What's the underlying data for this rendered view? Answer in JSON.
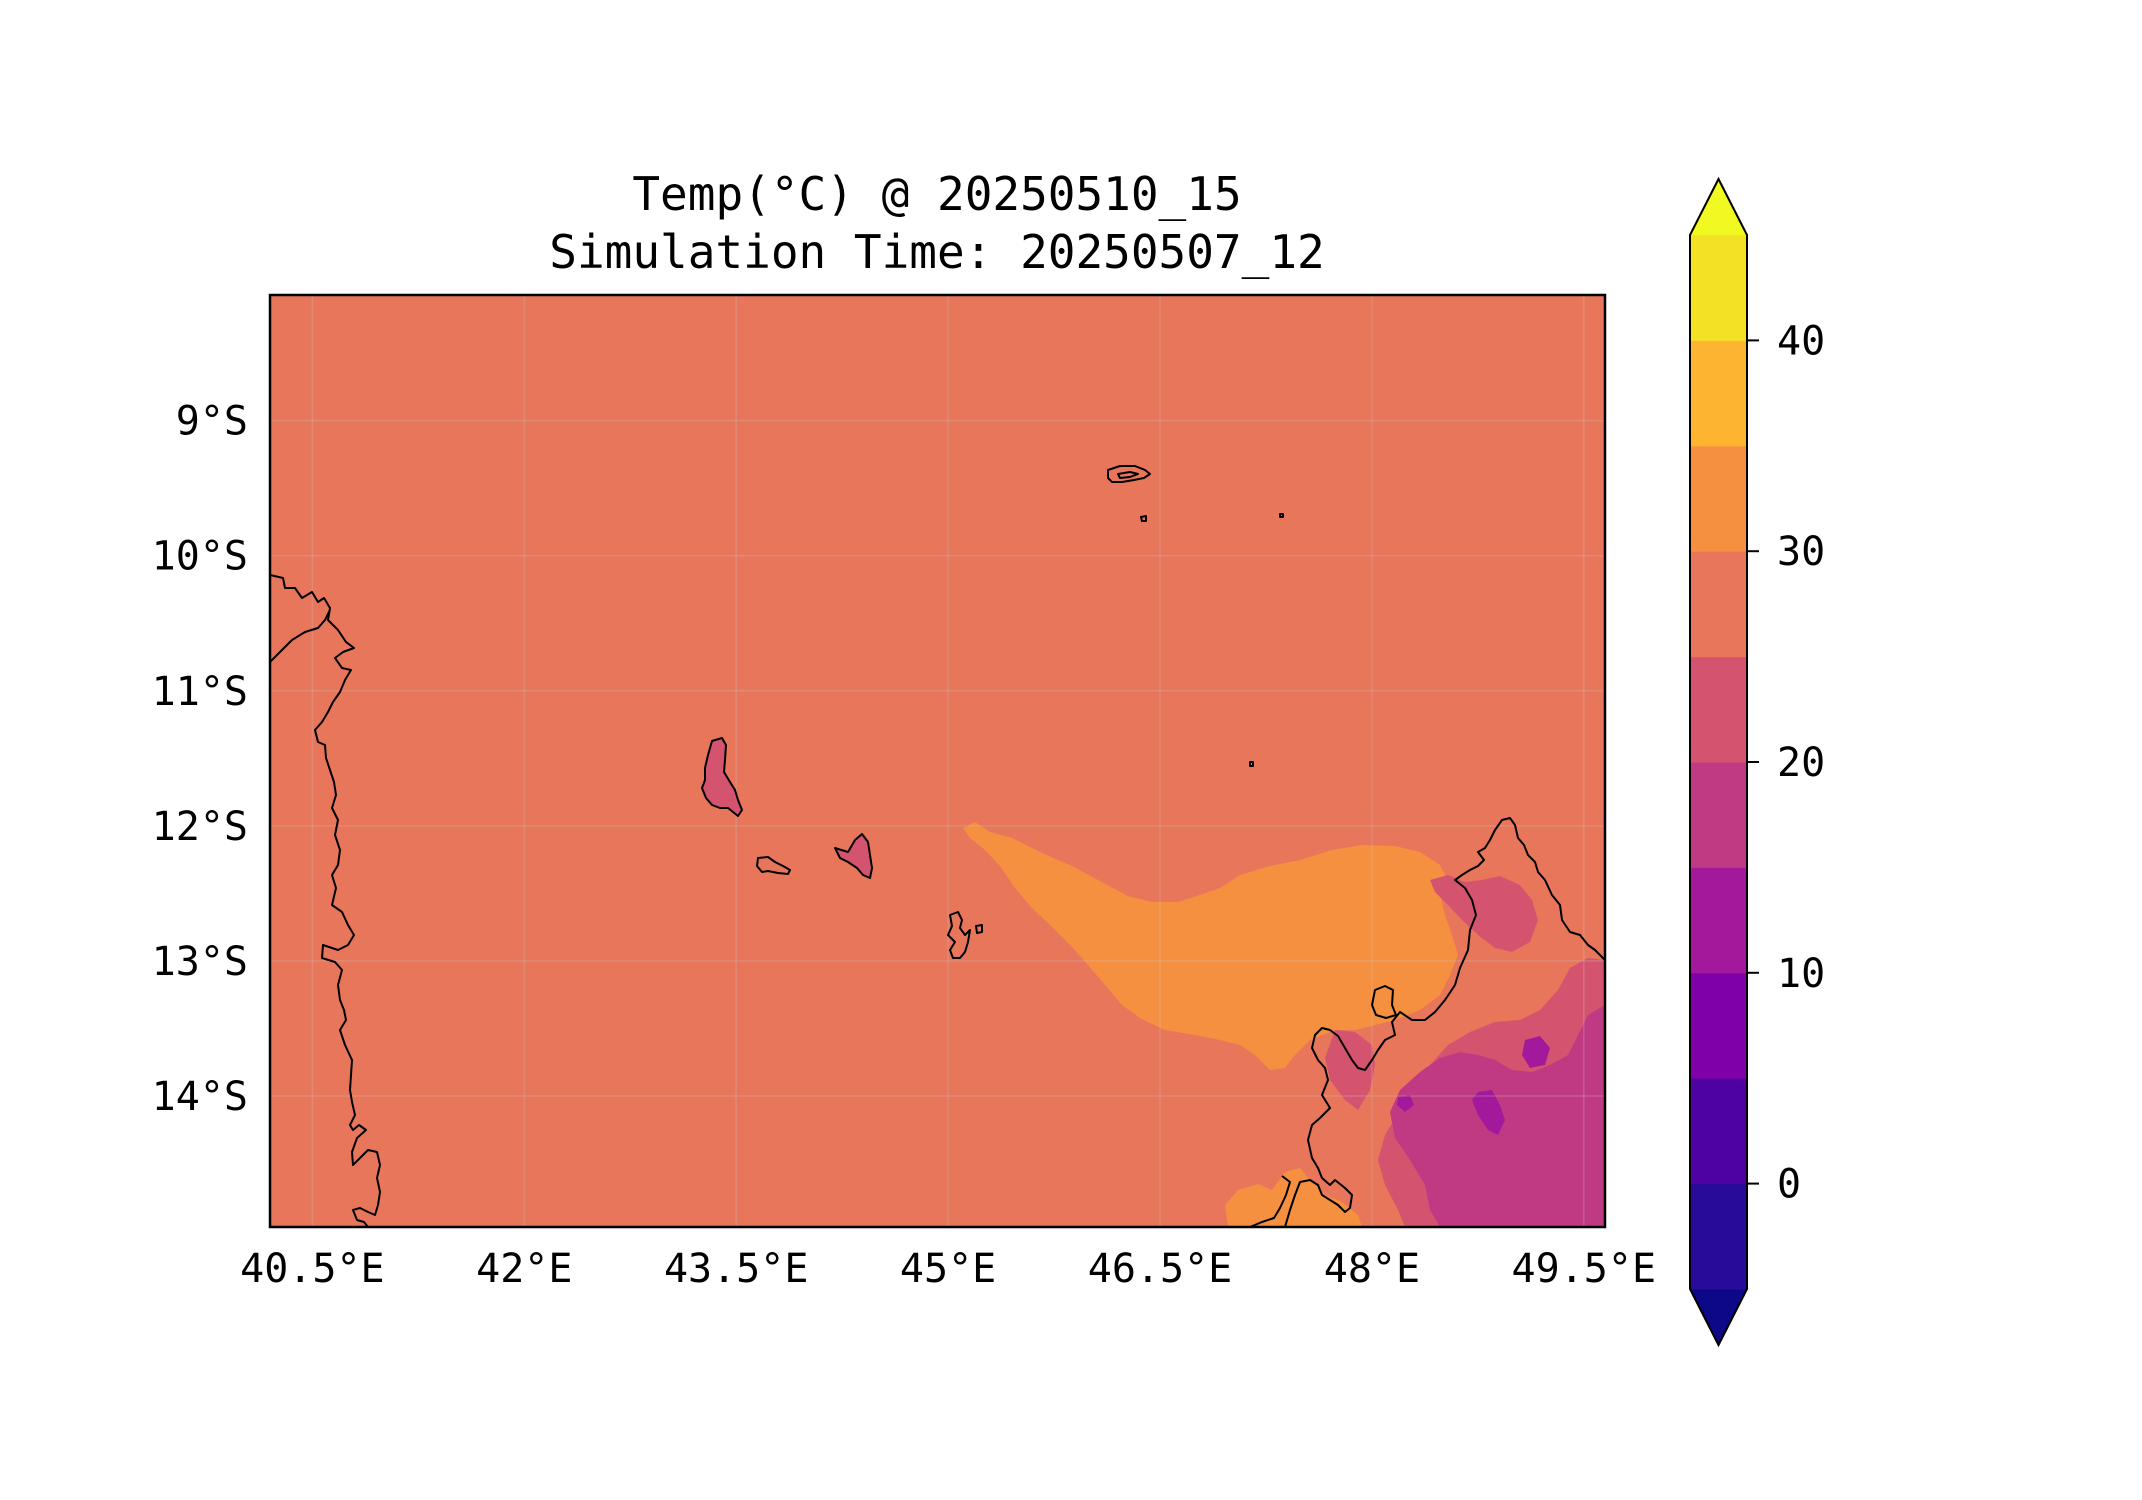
{
  "title": {
    "line1": "Temp(°C) @ 20250510_15",
    "line2": "Simulation Time: 20250507_12"
  },
  "map": {
    "lon_range": [
      40.2,
      49.65
    ],
    "lat_range": [
      -14.97,
      -8.07
    ],
    "lon_ticks": [
      {
        "value": 40.5,
        "label": "40.5°E"
      },
      {
        "value": 42,
        "label": "42°E"
      },
      {
        "value": 43.5,
        "label": "43.5°E"
      },
      {
        "value": 45,
        "label": "45°E"
      },
      {
        "value": 46.5,
        "label": "46.5°E"
      },
      {
        "value": 48,
        "label": "48°E"
      },
      {
        "value": 49.5,
        "label": "49.5°E"
      }
    ],
    "lat_ticks": [
      {
        "value": -9,
        "label": "9°S"
      },
      {
        "value": -10,
        "label": "10°S"
      },
      {
        "value": -11,
        "label": "11°S"
      },
      {
        "value": -12,
        "label": "12°S"
      },
      {
        "value": -13,
        "label": "13°S"
      },
      {
        "value": -14,
        "label": "14°S"
      }
    ],
    "gridlines": true,
    "background_level_color": "#e8765a"
  },
  "colorbar": {
    "levels": [
      -5,
      0,
      5,
      10,
      15,
      20,
      25,
      30,
      35,
      40,
      45
    ],
    "colors": [
      "#280b99",
      "#4e02a2",
      "#7f00a8",
      "#a21a9b",
      "#c03a83",
      "#d45470",
      "#e8765a",
      "#f69041",
      "#fdb531",
      "#f3e125"
    ],
    "under_color": "#0d0887",
    "over_color": "#f0f921",
    "ticks": [
      {
        "value": 0,
        "label": "0"
      },
      {
        "value": 10,
        "label": "10"
      },
      {
        "value": 20,
        "label": "20"
      },
      {
        "value": 30,
        "label": "30"
      },
      {
        "value": 40,
        "label": "40"
      }
    ],
    "extend": "both"
  }
}
